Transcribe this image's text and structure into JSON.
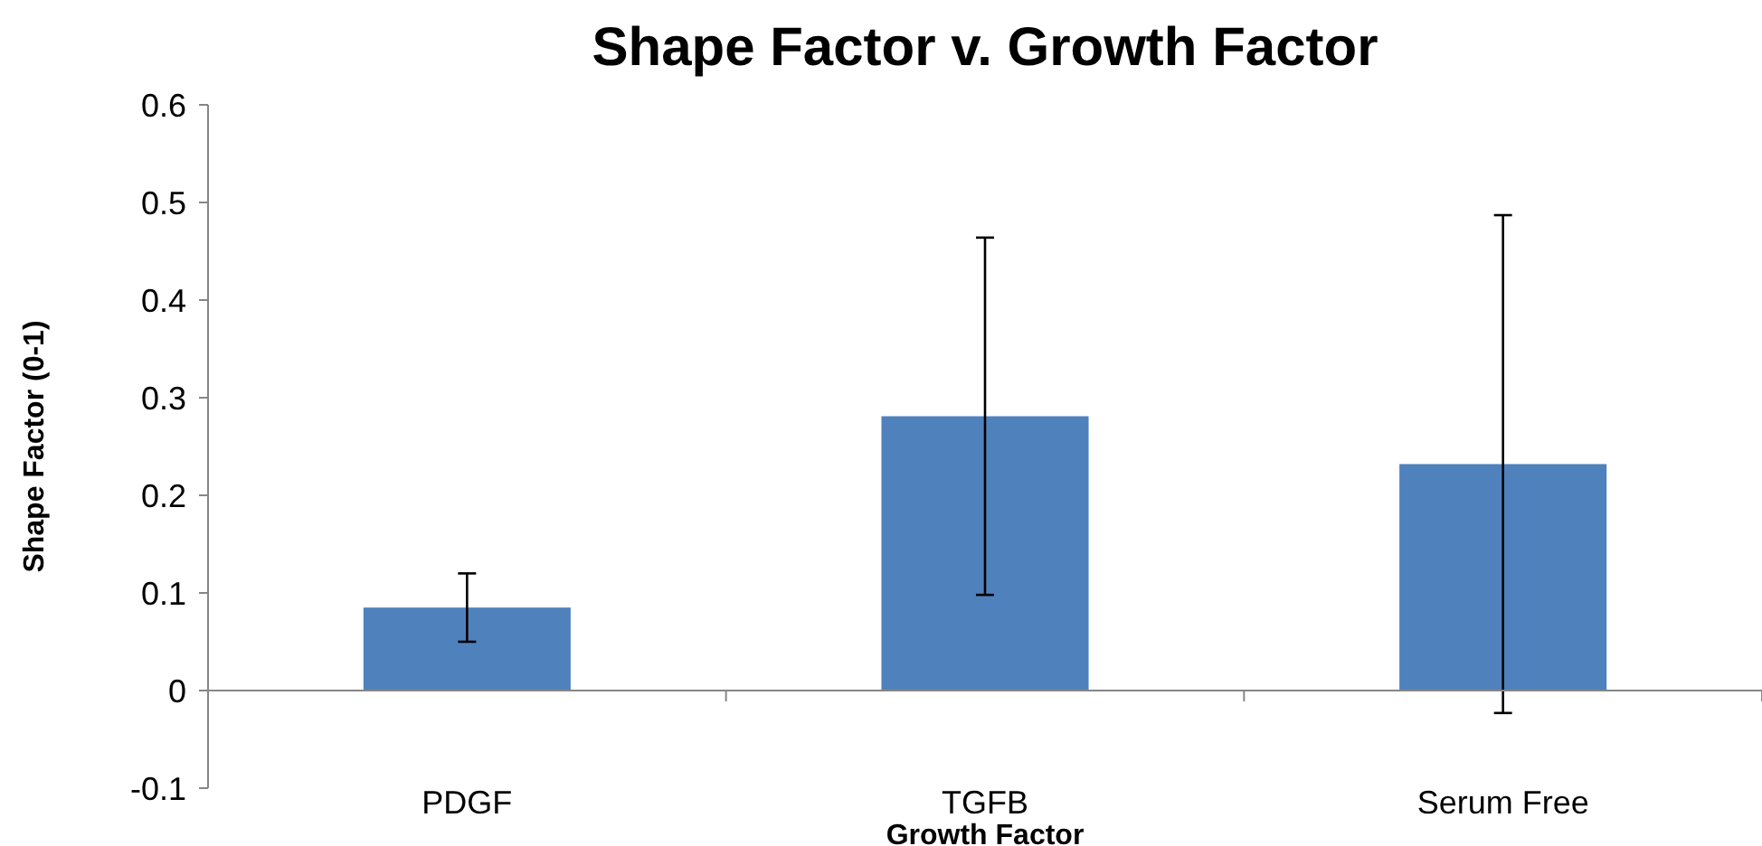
{
  "chart_data": {
    "type": "bar",
    "title": "Shape Factor v. Growth Factor",
    "xlabel": "Growth Factor",
    "ylabel": "Shape Factor (0-1)",
    "categories": [
      "PDGF",
      "TGFB",
      "Serum Free"
    ],
    "values": [
      0.085,
      0.281,
      0.232
    ],
    "errors": [
      0.035,
      0.183,
      0.255
    ],
    "color": "#4f81bd",
    "ylim": [
      -0.1,
      0.6
    ],
    "yticks": [
      -0.1,
      0,
      0.1,
      0.2,
      0.3,
      0.4,
      0.5,
      0.6
    ],
    "grid": false
  }
}
